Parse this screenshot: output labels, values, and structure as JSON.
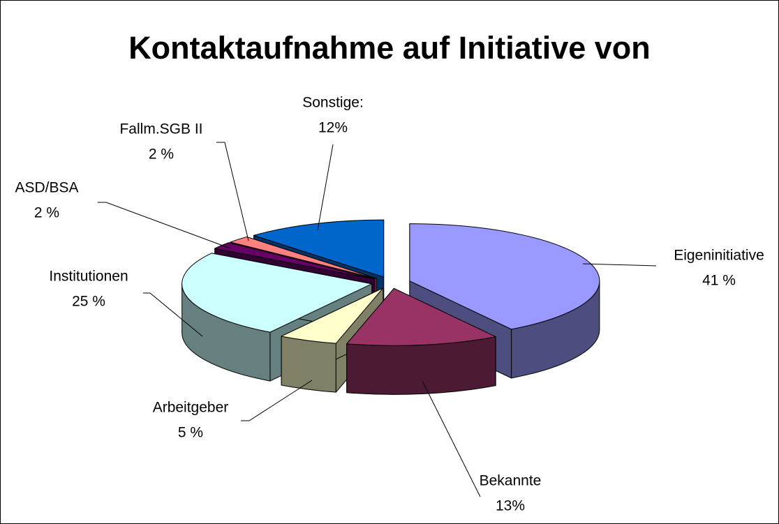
{
  "chart_data": {
    "type": "pie",
    "title": "Kontaktaufnahme auf Initiative von",
    "categories": [
      "Eigeninitiative",
      "Bekannte",
      "Arbeitgeber",
      "Institutionen",
      "ASD/BSA",
      "Fallm.SGB II",
      "Sonstige:"
    ],
    "values": [
      41,
      13,
      5,
      25,
      2,
      2,
      12
    ],
    "value_labels": [
      "41 %",
      "13%",
      "5 %",
      "25 %",
      "2 %",
      "2 %",
      "12%"
    ],
    "colors": [
      "#9999ff",
      "#993366",
      "#ffffcc",
      "#ccffff",
      "#660066",
      "#ff8080",
      "#0066cc"
    ]
  }
}
